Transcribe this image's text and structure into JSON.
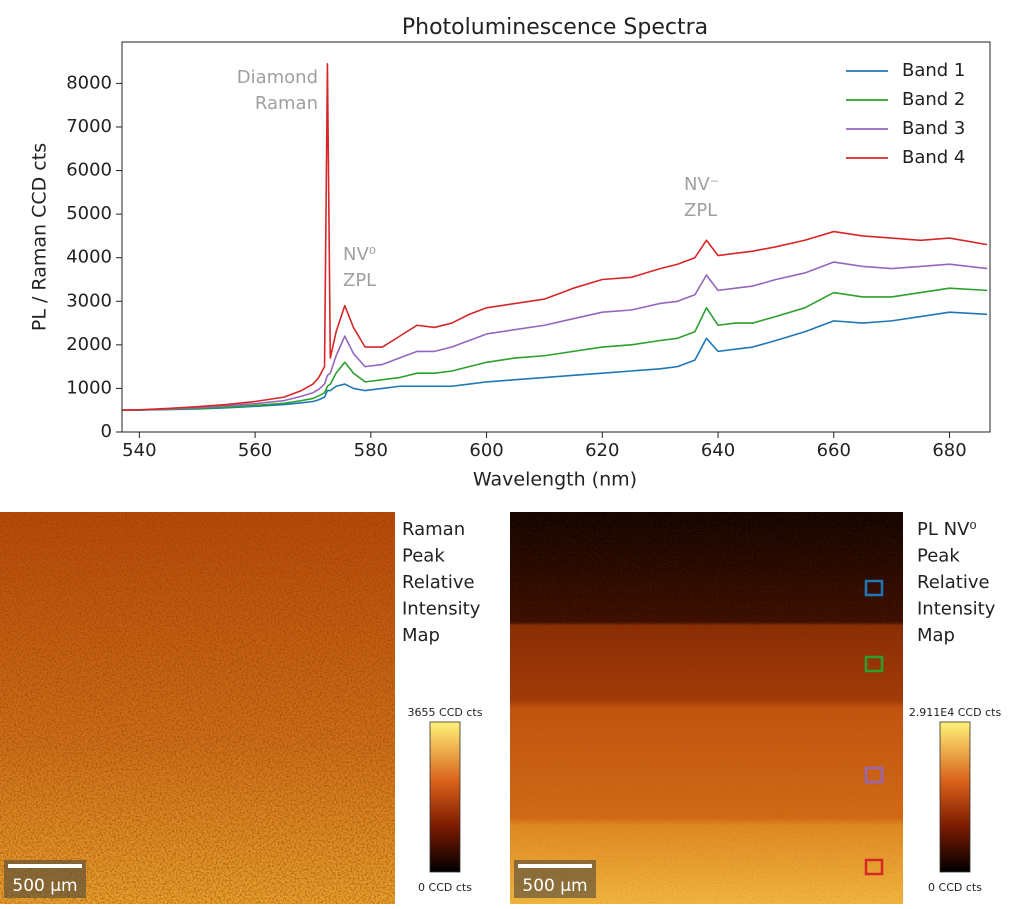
{
  "chart_data": {
    "type": "line",
    "title": "Photoluminescence Spectra",
    "xlabel": "Wavelength (nm)",
    "ylabel": "PL / Raman CCD cts",
    "x": [
      537,
      540,
      545,
      550,
      555,
      560,
      565,
      568,
      570,
      571,
      572,
      572.5,
      573,
      574,
      575.5,
      577,
      579,
      582,
      585,
      588,
      591,
      594,
      597,
      600,
      605,
      610,
      615,
      620,
      625,
      630,
      633,
      636,
      638,
      640,
      643,
      646,
      650,
      655,
      660,
      665,
      670,
      675,
      680,
      686.5
    ],
    "series": [
      {
        "name": "Band 1",
        "color": "#1f77b4",
        "values": [
          500,
          502,
          515,
          530,
          555,
          590,
          630,
          670,
          700,
          740,
          800,
          950,
          950,
          1050,
          1100,
          1000,
          950,
          1000,
          1050,
          1050,
          1050,
          1050,
          1100,
          1150,
          1200,
          1250,
          1300,
          1350,
          1400,
          1450,
          1500,
          1650,
          2150,
          1850,
          1900,
          1950,
          2100,
          2300,
          2550,
          2500,
          2550,
          2650,
          2750,
          2700
        ]
      },
      {
        "name": "Band 2",
        "color": "#2ca02c",
        "values": [
          500,
          505,
          520,
          540,
          570,
          610,
          660,
          720,
          770,
          830,
          900,
          1050,
          1100,
          1350,
          1600,
          1350,
          1150,
          1200,
          1250,
          1350,
          1350,
          1400,
          1500,
          1600,
          1700,
          1750,
          1850,
          1950,
          2000,
          2100,
          2150,
          2300,
          2850,
          2450,
          2500,
          2500,
          2650,
          2850,
          3200,
          3100,
          3100,
          3200,
          3300,
          3250
        ]
      },
      {
        "name": "Band 3",
        "color": "#9467bd",
        "values": [
          500,
          505,
          530,
          560,
          600,
          650,
          720,
          820,
          900,
          980,
          1100,
          1300,
          1350,
          1750,
          2200,
          1800,
          1500,
          1550,
          1700,
          1850,
          1850,
          1950,
          2100,
          2250,
          2350,
          2450,
          2600,
          2750,
          2800,
          2950,
          3000,
          3150,
          3600,
          3250,
          3300,
          3350,
          3500,
          3650,
          3900,
          3800,
          3750,
          3800,
          3850,
          3750
        ]
      },
      {
        "name": "Band 4",
        "color": "#d62728",
        "values": [
          500,
          510,
          540,
          580,
          630,
          700,
          800,
          950,
          1100,
          1250,
          1500,
          8450,
          1700,
          2300,
          2900,
          2400,
          1950,
          1950,
          2200,
          2450,
          2400,
          2500,
          2700,
          2850,
          2950,
          3050,
          3300,
          3500,
          3550,
          3750,
          3850,
          4000,
          4400,
          4050,
          4100,
          4150,
          4250,
          4400,
          4600,
          4500,
          4450,
          4400,
          4450,
          4300
        ]
      }
    ],
    "xlim": [
      537,
      687
    ],
    "ylim": [
      0,
      8950
    ],
    "xticks": [
      540,
      560,
      580,
      600,
      620,
      640,
      660,
      680
    ],
    "yticks": [
      0,
      1000,
      2000,
      3000,
      4000,
      5000,
      6000,
      7000,
      8000
    ],
    "legend": "upper right",
    "annotations": [
      {
        "lines": [
          "Diamond",
          "Raman"
        ]
      },
      {
        "lines": [
          "NV⁰",
          "ZPL"
        ]
      },
      {
        "lines": [
          "NV⁻",
          "ZPL"
        ]
      }
    ]
  },
  "maps": [
    {
      "title_lines": [
        "Raman",
        "Peak",
        "Relative",
        "Intensity",
        "Map"
      ],
      "scale_bar": "500 µm",
      "colorbar": {
        "max_label": "3655 CCD cts",
        "min_label": "0 CCD cts"
      }
    },
    {
      "title_lines": [
        "PL NV⁰",
        "Peak",
        "Relative",
        "Intensity",
        "Map"
      ],
      "scale_bar": "500 µm",
      "colorbar": {
        "max_label": "2.911E4 CCD cts",
        "min_label": "0 CCD cts"
      }
    }
  ]
}
